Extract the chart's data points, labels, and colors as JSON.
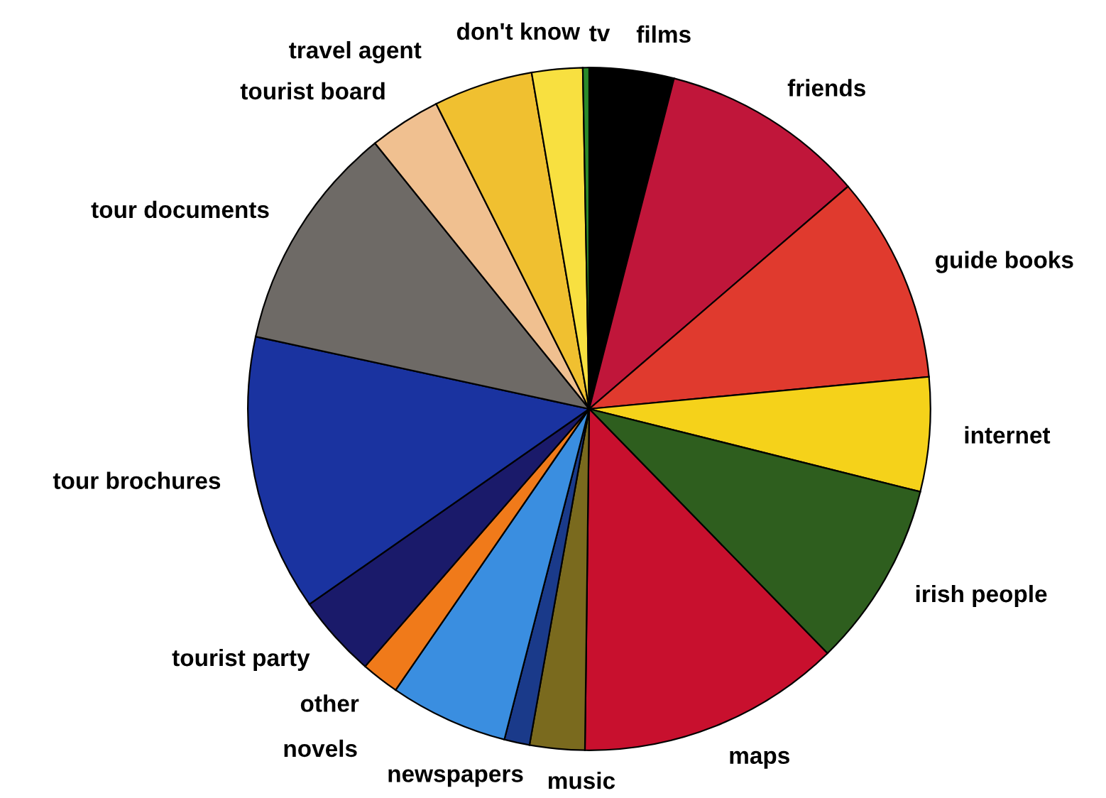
{
  "chart_data": {
    "type": "pie",
    "categories": [
      "films",
      "friends",
      "guide books",
      "internet",
      "irish people",
      "maps",
      "music",
      "newspapers",
      "novels",
      "other",
      "tourist party",
      "tour brochures",
      "tour documents",
      "tourist board",
      "travel agent",
      "tv",
      "don't know"
    ],
    "values": [
      4.0,
      9.7,
      9.8,
      5.4,
      8.8,
      12.5,
      2.6,
      1.2,
      5.6,
      1.8,
      3.9,
      13.1,
      10.8,
      3.4,
      4.7,
      2.4,
      0.3
    ],
    "colors": [
      "#000000",
      "#c0163a",
      "#e03a2e",
      "#f5d21a",
      "#2e5e1e",
      "#c8102e",
      "#7a6a1e",
      "#1a3a8a",
      "#3a8ee0",
      "#f07a1a",
      "#1a1a6a",
      "#1a33a0",
      "#6e6a66",
      "#f0c090",
      "#f0c030",
      "#f8e040",
      "#2a8a2a"
    ],
    "legend": false
  }
}
